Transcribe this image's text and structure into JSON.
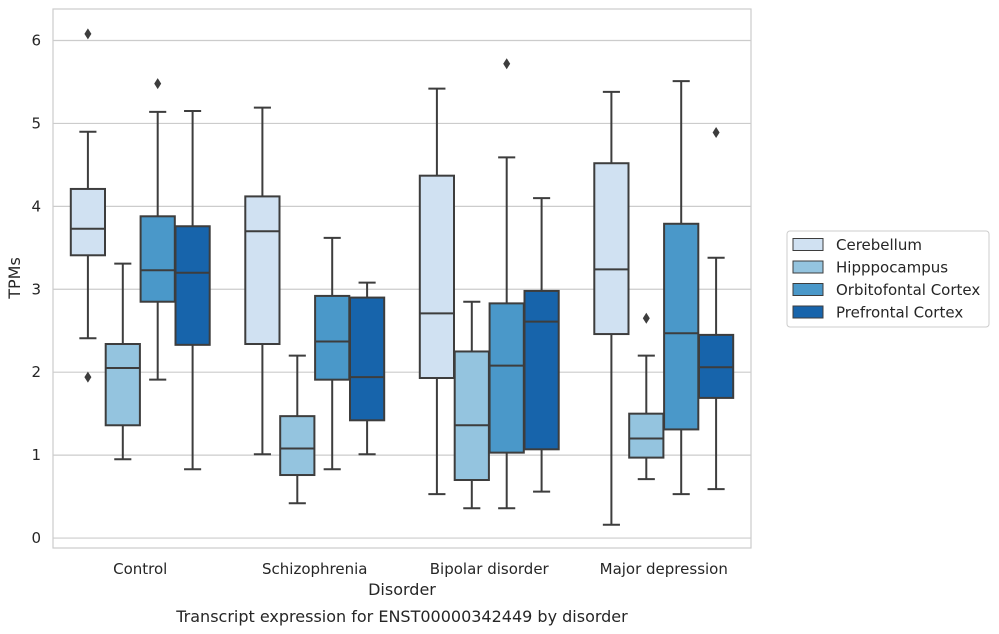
{
  "caption": "Transcript expression for ENST00000342449 by disorder",
  "chart_data": {
    "type": "boxplot",
    "title": "",
    "xlabel": "Disorder",
    "ylabel": "TPMs",
    "ylim": [
      -0.12,
      6.38
    ],
    "yticks": [
      0,
      1,
      2,
      3,
      4,
      5,
      6
    ],
    "grid": "horizontal",
    "legend_position": "right",
    "categories": [
      "Control",
      "Schizophrenia",
      "Bipolar disorder",
      "Major depression"
    ],
    "series": [
      {
        "name": "Cerebellum",
        "color": "#d0e1f2",
        "boxes": [
          {
            "whislo": 2.41,
            "q1": 3.41,
            "med": 3.73,
            "q3": 4.21,
            "whishi": 4.9,
            "fliers": [
              6.08,
              1.94
            ]
          },
          {
            "whislo": 1.01,
            "q1": 2.34,
            "med": 3.7,
            "q3": 4.12,
            "whishi": 5.19,
            "fliers": []
          },
          {
            "whislo": 0.53,
            "q1": 1.93,
            "med": 2.71,
            "q3": 4.37,
            "whishi": 5.42,
            "fliers": []
          },
          {
            "whislo": 0.16,
            "q1": 2.46,
            "med": 3.24,
            "q3": 4.52,
            "whishi": 5.38,
            "fliers": []
          }
        ]
      },
      {
        "name": "Hipppocampus",
        "color": "#94c4df",
        "boxes": [
          {
            "whislo": 0.95,
            "q1": 1.36,
            "med": 2.05,
            "q3": 2.34,
            "whishi": 3.31,
            "fliers": []
          },
          {
            "whislo": 0.42,
            "q1": 0.76,
            "med": 1.08,
            "q3": 1.47,
            "whishi": 2.2,
            "fliers": []
          },
          {
            "whislo": 0.36,
            "q1": 0.7,
            "med": 1.36,
            "q3": 2.25,
            "whishi": 2.85,
            "fliers": []
          },
          {
            "whislo": 0.71,
            "q1": 0.97,
            "med": 1.2,
            "q3": 1.5,
            "whishi": 2.2,
            "fliers": [
              2.65
            ]
          }
        ]
      },
      {
        "name": "Orbitofontal Cortex",
        "color": "#4a98c9",
        "boxes": [
          {
            "whislo": 1.91,
            "q1": 2.85,
            "med": 3.23,
            "q3": 3.88,
            "whishi": 5.14,
            "fliers": [
              5.48
            ]
          },
          {
            "whislo": 0.83,
            "q1": 1.91,
            "med": 2.37,
            "q3": 2.92,
            "whishi": 3.62,
            "fliers": []
          },
          {
            "whislo": 0.36,
            "q1": 1.03,
            "med": 2.08,
            "q3": 2.83,
            "whishi": 4.59,
            "fliers": [
              5.72
            ]
          },
          {
            "whislo": 0.53,
            "q1": 1.31,
            "med": 2.47,
            "q3": 3.79,
            "whishi": 5.51,
            "fliers": []
          }
        ]
      },
      {
        "name": "Prefrontal Cortex",
        "color": "#1764ab",
        "boxes": [
          {
            "whislo": 0.83,
            "q1": 2.33,
            "med": 3.2,
            "q3": 3.76,
            "whishi": 5.15,
            "fliers": []
          },
          {
            "whislo": 1.01,
            "q1": 1.42,
            "med": 1.94,
            "q3": 2.9,
            "whishi": 3.08,
            "fliers": []
          },
          {
            "whislo": 0.56,
            "q1": 1.07,
            "med": 2.61,
            "q3": 2.98,
            "whishi": 4.1,
            "fliers": []
          },
          {
            "whislo": 0.59,
            "q1": 1.69,
            "med": 2.06,
            "q3": 2.45,
            "whishi": 3.38,
            "fliers": [
              4.89
            ]
          }
        ]
      }
    ]
  }
}
